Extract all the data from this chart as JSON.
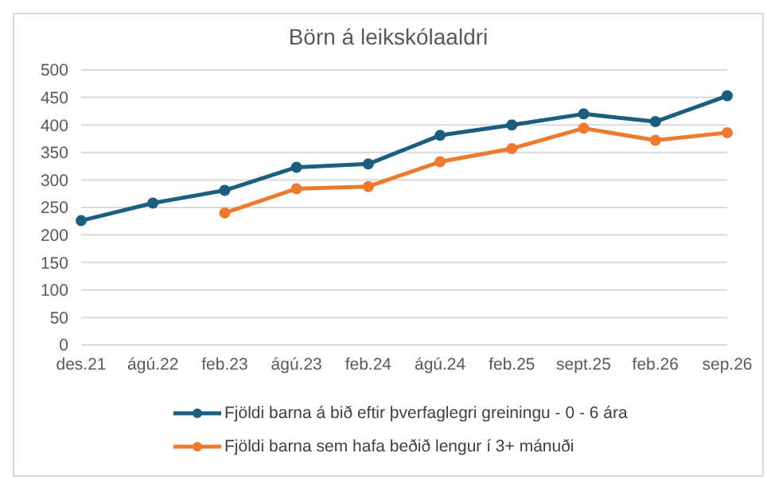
{
  "chart_data": {
    "type": "line",
    "title": "Börn á leikskólaaldri",
    "categories": [
      "des.21",
      "ágú.22",
      "feb.23",
      "ágú.23",
      "feb.24",
      "ágú.24",
      "feb.25",
      "sept.25",
      "feb.26",
      "sep.26"
    ],
    "series": [
      {
        "name": "Fjöldi barna á bið eftir þverfaglegri greiningu - 0 - 6 ára",
        "color": "#1b5e7e",
        "values": [
          226,
          258,
          281,
          323,
          329,
          381,
          400,
          420,
          406,
          453
        ]
      },
      {
        "name": "Fjöldi barna sem hafa beðið lengur í 3+ mánuði",
        "color": "#ee7a30",
        "values": [
          null,
          null,
          240,
          284,
          288,
          333,
          357,
          394,
          372,
          386
        ]
      }
    ],
    "ylim": [
      0,
      500
    ],
    "yticks": [
      0,
      50,
      100,
      150,
      200,
      250,
      300,
      350,
      400,
      450,
      500
    ],
    "grid": "y",
    "legend": "bottom",
    "marker": "circle",
    "line_style": "solid"
  }
}
